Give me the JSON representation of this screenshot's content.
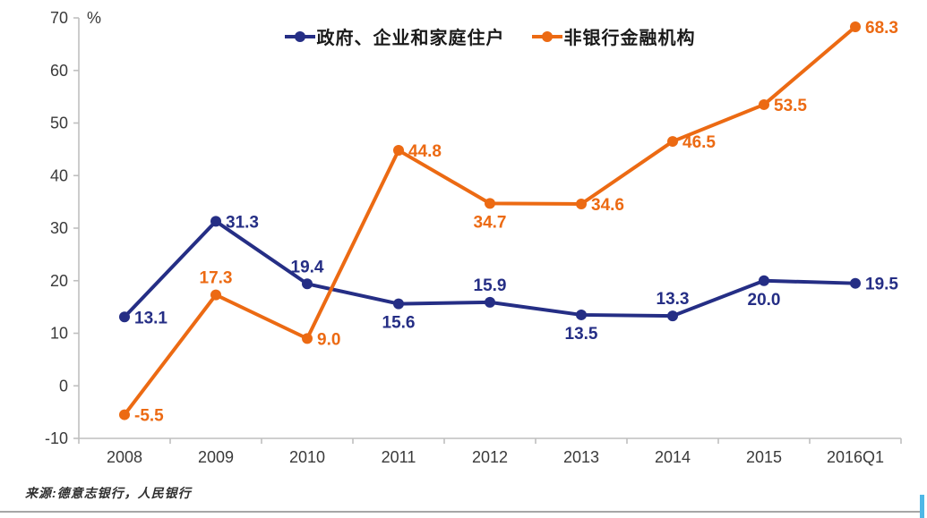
{
  "chart_data": {
    "type": "line",
    "title": "",
    "categories": [
      "2008",
      "2009",
      "2010",
      "2011",
      "2012",
      "2013",
      "2014",
      "2015",
      "2016Q1"
    ],
    "series": [
      {
        "name": "政府、企业和家庭住户",
        "color": "#252e85",
        "values": [
          13.1,
          31.3,
          19.4,
          15.6,
          15.9,
          13.5,
          13.3,
          20.0,
          19.5
        ],
        "label_positions": [
          "right",
          "right",
          "above",
          "below",
          "above",
          "below",
          "above",
          "below",
          "right"
        ]
      },
      {
        "name": "非银行金融机构",
        "color": "#ec6a13",
        "values": [
          -5.5,
          17.3,
          9.0,
          44.8,
          34.7,
          34.6,
          46.5,
          53.5,
          68.3
        ],
        "label_positions": [
          "right",
          "above",
          "right",
          "right",
          "below",
          "right",
          "right",
          "right",
          "right"
        ]
      }
    ],
    "y_axis": {
      "unit": "%",
      "min": -10,
      "max": 70,
      "step": 10,
      "ticks": [
        70,
        60,
        50,
        40,
        30,
        20,
        10,
        0,
        -10
      ]
    },
    "legend_position": "top",
    "grid": false,
    "axis_color": "#bfbfbf"
  },
  "footer": {
    "source": "来源:德意志银行，人民银行"
  }
}
